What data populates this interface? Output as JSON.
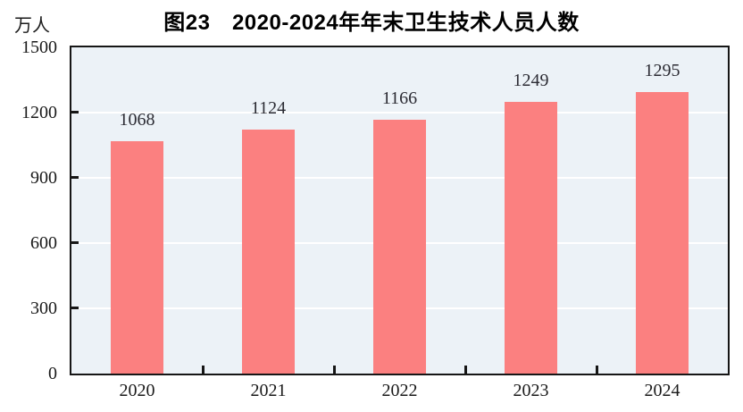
{
  "title": "图23　2020-2024年年末卫生技术人员人数",
  "unit_label": "万人",
  "chart_data": {
    "type": "bar",
    "title": "图23　2020-2024年年末卫生技术人员人数",
    "categories": [
      "2020",
      "2021",
      "2022",
      "2023",
      "2024"
    ],
    "values": [
      1068,
      1124,
      1166,
      1249,
      1295
    ],
    "value_labels": [
      "1068",
      "1124",
      "1166",
      "1249",
      "1295"
    ],
    "xlabel": "",
    "ylabel": "万人",
    "ylim": [
      0,
      1500
    ],
    "yticks": [
      0,
      300,
      600,
      900,
      1200,
      1500
    ],
    "grid": true,
    "legend": "none",
    "colors": {
      "bar": "#FB8080",
      "plot_background": "#ECF2F7",
      "gridline": "#FFFFFF",
      "axis_border": "#161616",
      "text": "#1A1A1A"
    }
  }
}
